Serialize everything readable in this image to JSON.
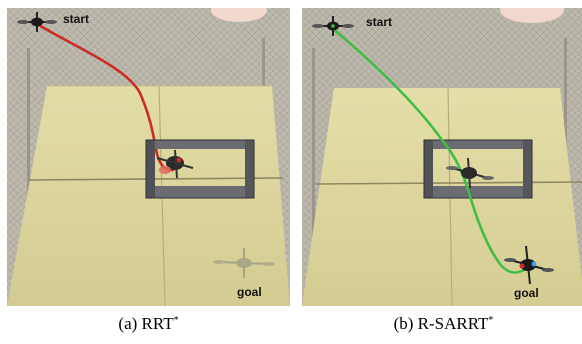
{
  "panels": [
    {
      "start_label": "start",
      "goal_label": "goal",
      "caption_letter": "(a)",
      "caption_planner": "RRT",
      "caption_superscript": "*",
      "path_color": "#cc2b24"
    },
    {
      "start_label": "start",
      "goal_label": "goal",
      "caption_letter": "(b)",
      "caption_planner": "R-SARRT",
      "caption_superscript": "*",
      "path_color": "#3fbe45"
    }
  ],
  "colors": {
    "mat": "#d8d29a",
    "gate_frame": "#55575c",
    "net_background": "#b9b5a9"
  }
}
